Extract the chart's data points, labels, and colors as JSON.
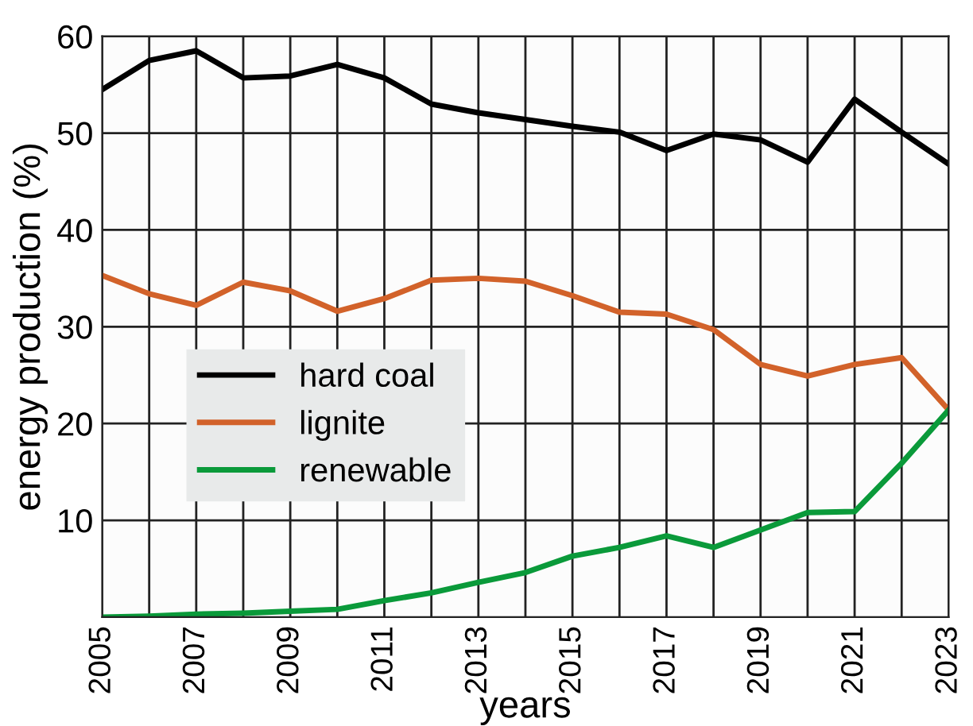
{
  "chart_data": {
    "type": "line",
    "xlabel": "years",
    "ylabel": "energy production (%)",
    "x": [
      2005,
      2006,
      2007,
      2008,
      2009,
      2010,
      2011,
      2012,
      2013,
      2014,
      2015,
      2016,
      2017,
      2018,
      2019,
      2020,
      2021,
      2022,
      2023
    ],
    "series": [
      {
        "name": "hard coal",
        "color": "#000000",
        "values": [
          54.5,
          57.5,
          58.5,
          55.7,
          55.9,
          57.1,
          55.7,
          53.0,
          52.1,
          51.4,
          50.7,
          50.1,
          48.2,
          49.9,
          49.3,
          47.0,
          53.5,
          50.1,
          46.8
        ]
      },
      {
        "name": "lignite",
        "color": "#d2622a",
        "values": [
          35.3,
          33.4,
          32.2,
          34.6,
          33.7,
          31.6,
          32.9,
          34.8,
          35.0,
          34.7,
          33.2,
          31.5,
          31.3,
          29.7,
          26.1,
          24.9,
          26.1,
          26.8,
          21.4
        ]
      },
      {
        "name": "renewable",
        "color": "#0a9a3a",
        "values": [
          0.0,
          0.1,
          0.3,
          0.4,
          0.6,
          0.8,
          1.7,
          2.5,
          3.6,
          4.6,
          6.3,
          7.2,
          8.4,
          7.2,
          9.0,
          10.8,
          10.9,
          15.9,
          21.4
        ]
      }
    ],
    "xlim": [
      2005,
      2023
    ],
    "xticks": [
      2005,
      {
        "value": 2006,
        "label": null
      },
      2007,
      {
        "value": 2008,
        "label": null
      },
      2009,
      {
        "value": 2010,
        "label": null
      },
      2011,
      {
        "value": 2012,
        "label": null
      },
      2013,
      {
        "value": 2014,
        "label": null
      },
      2015,
      {
        "value": 2016,
        "label": null
      },
      2017,
      {
        "value": 2018,
        "label": null
      },
      2019,
      {
        "value": 2020,
        "label": null
      },
      2021,
      {
        "value": 2022,
        "label": null
      },
      2023
    ],
    "ylim": [
      0,
      60
    ],
    "yticks": [
      10,
      20,
      30,
      40,
      50,
      60
    ],
    "grid": true,
    "legend": "left",
    "marker": "none",
    "line_style": "solid"
  }
}
